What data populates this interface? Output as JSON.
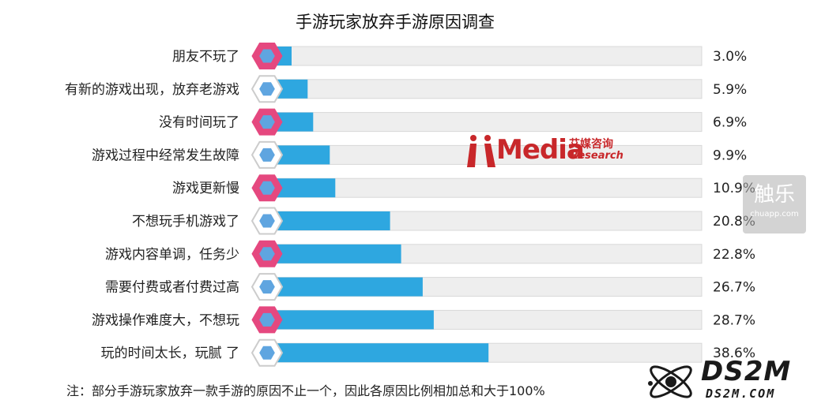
{
  "chart_data": {
    "type": "bar",
    "orientation": "horizontal",
    "title": "手游玩家放弃手游原因调查",
    "categories": [
      "朋友不玩了",
      "有新的游戏出现，放弃老游戏",
      "没有时间玩了",
      "游戏过程中经常发生故障",
      "游戏更新慢",
      "不想玩手机游戏了",
      "游戏内容单调，任务少",
      "需要付费或者付费过高",
      "游戏操作难度大，不想玩",
      "玩的时间太长，玩腻 了"
    ],
    "values": [
      3.0,
      5.9,
      6.9,
      9.9,
      10.9,
      20.8,
      22.8,
      26.7,
      28.7,
      38.6
    ],
    "value_labels": [
      "3.0%",
      "5.9%",
      "6.9%",
      "9.9%",
      "10.9%",
      "20.8%",
      "22.8%",
      "26.7%",
      "28.7%",
      "38.6%"
    ],
    "unit": "%",
    "xlim": [
      0,
      100
    ],
    "grid": false,
    "colors": {
      "bar": "#2ea7e0",
      "track": "#eeeeee",
      "marker_fill": "#5fa5e0",
      "marker_border_odd": "#e5487f",
      "marker_border_even": "#cccccc"
    }
  },
  "note": "注：部分手游玩家放弃一款手游的原因不止一个，因此各原因比例相加总和大于100%",
  "watermarks": {
    "iimedia_main": "Media",
    "iimedia_cn": "艾媒咨询",
    "iimedia_en": "Research",
    "chuapp_cn": "触乐",
    "chuapp_url": "chuapp.com",
    "ds2m_big": "DS2M",
    "ds2m_small": "DS2M.COM"
  }
}
